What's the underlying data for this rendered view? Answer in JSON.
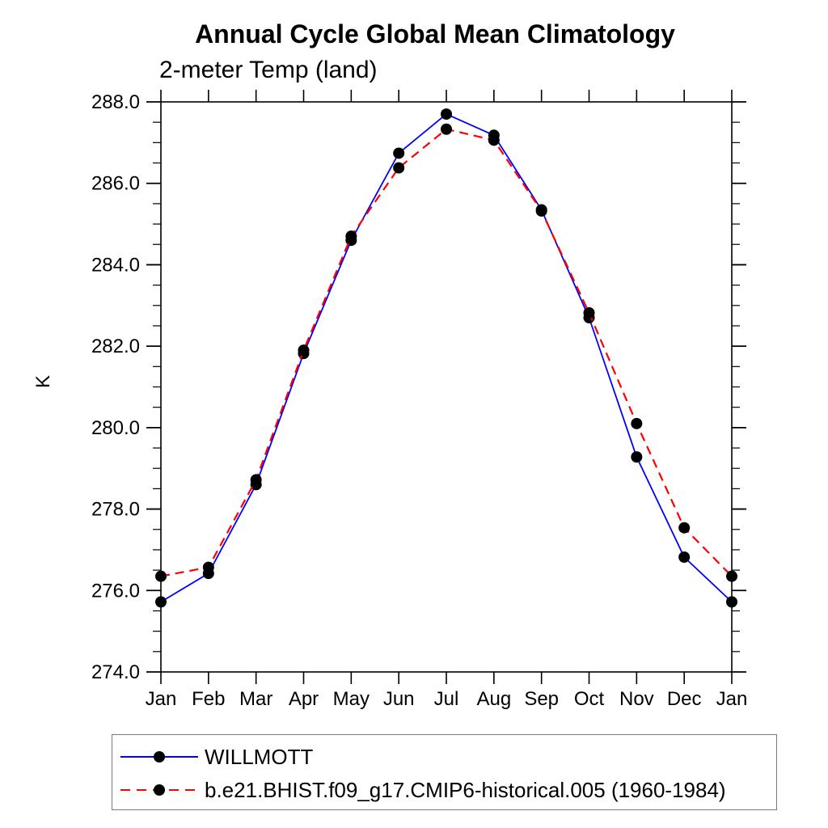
{
  "title": "Annual Cycle Global Mean Climatology",
  "subtitle": "2-meter Temp (land)",
  "colors": {
    "background": "#ffffff",
    "axis": "#000000",
    "marker": "#000000",
    "legend_border": "#7a7a7a",
    "willmott_line": "#0000ff",
    "model_line": "#ff0000"
  },
  "chart_data": {
    "type": "line",
    "title": "Annual Cycle Global Mean Climatology",
    "subtitle": "2-meter Temp (land)",
    "xlabel": "",
    "ylabel": "K",
    "categories": [
      "Jan",
      "Feb",
      "Mar",
      "Apr",
      "May",
      "Jun",
      "Jul",
      "Aug",
      "Sep",
      "Oct",
      "Nov",
      "Dec",
      "Jan"
    ],
    "ylim": [
      274.0,
      288.0
    ],
    "ytick_major": 2.0,
    "ytick_minor": 0.5,
    "ytick_labels": [
      "274.0",
      "276.0",
      "278.0",
      "280.0",
      "282.0",
      "284.0",
      "286.0",
      "288.0"
    ],
    "grid": false,
    "legend_position": "below-plot-left",
    "series": [
      {
        "name": "WILLMOTT",
        "color": "#0000ff",
        "line_style": "solid",
        "marker": "filled-circle",
        "marker_color": "#000000",
        "values": [
          275.72,
          276.42,
          278.6,
          281.82,
          284.6,
          286.74,
          287.7,
          287.18,
          285.35,
          282.7,
          279.28,
          276.82,
          275.72
        ]
      },
      {
        "name": "b.e21.BHIST.f09_g17.CMIP6-historical.005 (1960-1984)",
        "color": "#ff0000",
        "line_style": "dashed",
        "marker": "filled-circle",
        "marker_color": "#000000",
        "values": [
          276.35,
          276.57,
          278.72,
          281.9,
          284.7,
          286.38,
          287.33,
          287.06,
          285.32,
          282.82,
          280.1,
          277.54,
          276.35
        ]
      }
    ]
  }
}
